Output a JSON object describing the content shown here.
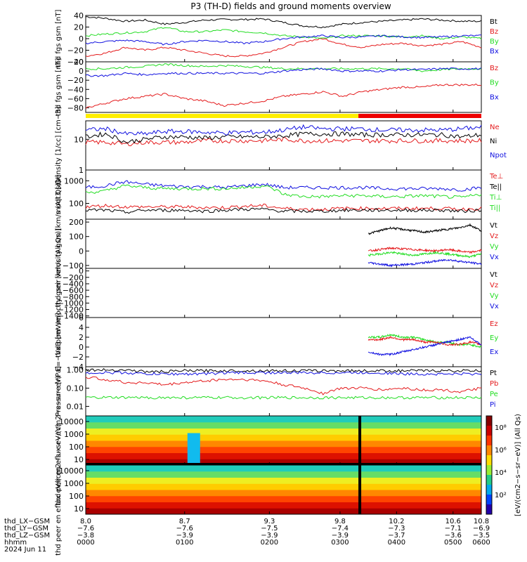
{
  "title": "P3 (TH-D) fields and ground moments overview",
  "colors": {
    "black": "#000000",
    "red": "#e41a1c",
    "green": "#22dd22",
    "blue": "#1010e0",
    "orange": "#ff8c00",
    "yellow_bar": "#ffee00",
    "red_bar": "#ee0000"
  },
  "chart_data": [
    {
      "type": "line",
      "ylabel": "thd fgs gsm [nT]",
      "ylim": [
        -40,
        40
      ],
      "yticks": [
        "40",
        "20",
        "0",
        "−20",
        "−40"
      ],
      "legend": [
        {
          "label": "Bt",
          "color": "#000000"
        },
        {
          "label": "Bz",
          "color": "#e41a1c"
        },
        {
          "label": "By",
          "color": "#22dd22"
        },
        {
          "label": "Bx",
          "color": "#1010e0"
        }
      ],
      "series": [
        {
          "name": "Bt",
          "color": "#000000",
          "y": [
            38,
            35,
            30,
            32,
            25,
            28,
            32,
            33,
            33,
            34,
            28,
            22,
            20,
            25,
            28,
            30,
            32,
            34,
            32,
            30,
            30
          ]
        },
        {
          "name": "Bz",
          "color": "#e41a1c",
          "y": [
            -30,
            -25,
            -15,
            -20,
            -15,
            -20,
            -25,
            -30,
            -30,
            -25,
            -15,
            -5,
            0,
            -10,
            -15,
            -10,
            -8,
            -12,
            -10,
            -5,
            -15
          ]
        },
        {
          "name": "By",
          "color": "#22dd22",
          "y": [
            5,
            8,
            10,
            12,
            20,
            12,
            12,
            15,
            12,
            10,
            5,
            3,
            0,
            5,
            5,
            5,
            3,
            5,
            0,
            3,
            0
          ]
        },
        {
          "name": "Bx",
          "color": "#1010e0",
          "y": [
            -8,
            -5,
            -3,
            -5,
            -10,
            -5,
            -3,
            -5,
            -8,
            -5,
            0,
            3,
            5,
            2,
            3,
            5,
            3,
            2,
            3,
            5,
            5
          ]
        }
      ]
    },
    {
      "type": "line",
      "ylabel": "thd fgs gsm [nT]",
      "ylim": [
        -90,
        20
      ],
      "yticks": [
        "20",
        "0",
        "−20",
        "−40",
        "−60",
        "−80"
      ],
      "legend": [
        {
          "label": "Bz",
          "color": "#e41a1c"
        },
        {
          "label": "By",
          "color": "#22dd22"
        },
        {
          "label": "Bx",
          "color": "#1010e0"
        }
      ],
      "series": [
        {
          "name": "Bz",
          "color": "#e41a1c",
          "y": [
            -80,
            -70,
            -60,
            -55,
            -50,
            -60,
            -65,
            -75,
            -70,
            -65,
            -55,
            -50,
            -45,
            -55,
            -45,
            -40,
            -35,
            -35,
            -30,
            -30,
            -30
          ]
        },
        {
          "name": "By",
          "color": "#22dd22",
          "y": [
            5,
            5,
            8,
            10,
            15,
            12,
            10,
            12,
            10,
            8,
            5,
            5,
            5,
            5,
            5,
            5,
            5,
            0,
            3,
            5,
            5
          ]
        },
        {
          "name": "Bx",
          "color": "#1010e0",
          "y": [
            -10,
            -10,
            -5,
            -8,
            -5,
            -5,
            -5,
            -5,
            -5,
            -5,
            0,
            3,
            5,
            0,
            0,
            0,
            3,
            3,
            5,
            5,
            5
          ]
        }
      ]
    },
    {
      "type": "line",
      "ylabel": "Density [1/cc] [cm−3]",
      "yscale": "log",
      "ylim": [
        1,
        40
      ],
      "yticks": [
        "10",
        "1"
      ],
      "legend": [
        {
          "label": "Ne",
          "color": "#e41a1c"
        },
        {
          "label": "Ni",
          "color": "#000000"
        },
        {
          "label": "Npot",
          "color": "#1010e0"
        }
      ],
      "series": [
        {
          "name": "Ne",
          "color": "#e41a1c",
          "y": [
            8,
            8,
            7,
            8,
            8,
            8,
            9,
            9,
            9,
            9,
            10,
            9,
            9,
            9,
            9,
            9,
            9,
            9,
            9,
            9,
            9
          ]
        },
        {
          "name": "Ni",
          "color": "#000000",
          "y": [
            12,
            15,
            8,
            10,
            12,
            12,
            11,
            12,
            12,
            12,
            13,
            15,
            15,
            15,
            14,
            14,
            14,
            14,
            14,
            12,
            14
          ]
        },
        {
          "name": "Npot",
          "color": "#1010e0",
          "y": [
            20,
            22,
            15,
            15,
            18,
            18,
            17,
            16,
            17,
            17,
            20,
            25,
            22,
            22,
            22,
            20,
            20,
            20,
            20,
            22,
            25
          ]
        }
      ]
    },
    {
      "type": "line",
      "ylabel": "moqt3 [eV]",
      "yscale": "log",
      "ylim": [
        20,
        3000
      ],
      "yticks": [
        "1000",
        "100"
      ],
      "legend": [
        {
          "label": "Te⊥",
          "color": "#e41a1c"
        },
        {
          "label": "Te||",
          "color": "#000000"
        },
        {
          "label": "Ti⊥",
          "color": "#22dd22"
        },
        {
          "label": "Ti||",
          "color": "#22dd22"
        }
      ],
      "series": [
        {
          "name": "Ti⊥",
          "color": "#1010e0",
          "y": [
            500,
            600,
            900,
            700,
            600,
            550,
            550,
            500,
            600,
            700,
            500,
            500,
            500,
            500,
            500,
            450,
            450,
            450,
            450,
            400,
            500
          ]
        },
        {
          "name": "Ti||",
          "color": "#22dd22",
          "y": [
            300,
            350,
            600,
            500,
            450,
            450,
            450,
            450,
            500,
            600,
            250,
            200,
            200,
            220,
            220,
            200,
            200,
            220,
            200,
            180,
            250
          ]
        },
        {
          "name": "Te⊥",
          "color": "#e41a1c",
          "y": [
            70,
            80,
            70,
            70,
            70,
            70,
            65,
            65,
            75,
            80,
            60,
            55,
            55,
            60,
            60,
            60,
            60,
            60,
            60,
            55,
            60
          ]
        },
        {
          "name": "Te||",
          "color": "#000000",
          "y": [
            50,
            50,
            40,
            50,
            50,
            50,
            45,
            50,
            55,
            55,
            45,
            45,
            45,
            50,
            50,
            50,
            50,
            50,
            50,
            45,
            50
          ]
        }
      ]
    },
    {
      "type": "line",
      "ylabel": "thd peir velocity gsm [km/s (All Qs)]",
      "ylim": [
        -120,
        220
      ],
      "yticks": [
        "200",
        "100",
        "0",
        "−100"
      ],
      "legend": [
        {
          "label": "Vt",
          "color": "#000000"
        },
        {
          "label": "Vz",
          "color": "#e41a1c"
        },
        {
          "label": "Vy",
          "color": "#22dd22"
        },
        {
          "label": "Vx",
          "color": "#1010e0"
        }
      ],
      "x_start": 10.0,
      "series": [
        {
          "name": "Vt",
          "color": "#000000",
          "y": [
            120,
            140,
            160,
            150,
            140,
            130,
            140,
            150,
            160,
            180,
            140
          ]
        },
        {
          "name": "Vz",
          "color": "#e41a1c",
          "y": [
            0,
            10,
            20,
            15,
            10,
            5,
            0,
            10,
            0,
            -10,
            5
          ]
        },
        {
          "name": "Vy",
          "color": "#22dd22",
          "y": [
            -30,
            -20,
            -10,
            -20,
            -30,
            -20,
            -10,
            -20,
            -30,
            -40,
            -20
          ]
        },
        {
          "name": "Vx",
          "color": "#1010e0",
          "y": [
            -80,
            -90,
            -100,
            -95,
            -90,
            -80,
            -70,
            -60,
            -70,
            -80,
            -90
          ]
        }
      ]
    },
    {
      "type": "line",
      "ylabel": "thd peer velocity gsm [km/s (All Qs)]",
      "ylim": [
        -1450,
        80
      ],
      "yticks": [
        "0",
        "−200",
        "−400",
        "−600",
        "−800",
        "−1000",
        "−1200",
        "−1400"
      ],
      "legend": [
        {
          "label": "Vt",
          "color": "#000000"
        },
        {
          "label": "Vz",
          "color": "#e41a1c"
        },
        {
          "label": "Vy",
          "color": "#22dd22"
        },
        {
          "label": "Vx",
          "color": "#1010e0"
        }
      ],
      "series": []
    },
    {
      "type": "line",
      "ylabel": "E=−VxB [mV/m]",
      "ylim": [
        -4,
        6
      ],
      "yticks": [
        "6",
        "4",
        "2",
        "0",
        "−2",
        "−4"
      ],
      "legend": [
        {
          "label": "Ez",
          "color": "#e41a1c"
        },
        {
          "label": "Ey",
          "color": "#22dd22"
        },
        {
          "label": "Ex",
          "color": "#1010e0"
        }
      ],
      "x_start": 10.0,
      "series": [
        {
          "name": "Ey",
          "color": "#22dd22",
          "y": [
            2,
            2,
            2.5,
            2,
            2,
            1.5,
            1,
            1,
            0.5,
            0.5,
            0
          ]
        },
        {
          "name": "Ez",
          "color": "#e41a1c",
          "y": [
            1.5,
            1.5,
            2,
            1.5,
            1.5,
            1,
            1,
            0.5,
            0.5,
            1,
            0.5
          ]
        },
        {
          "name": "Ex",
          "color": "#1010e0",
          "y": [
            -1,
            -1.5,
            -1.5,
            -1,
            -0.5,
            0,
            0.5,
            1,
            1.5,
            2,
            0.5
          ]
        }
      ]
    },
    {
      "type": "line",
      "ylabel": "Pressure [nPa]",
      "yscale": "log",
      "ylim": [
        0.003,
        1.5
      ],
      "yticks": [
        "1.00",
        "0.10",
        "0.01"
      ],
      "legend": [
        {
          "label": "Pt",
          "color": "#000000"
        },
        {
          "label": "Pb",
          "color": "#e41a1c"
        },
        {
          "label": "Pe",
          "color": "#22dd22"
        },
        {
          "label": "Pi",
          "color": "#1010e0"
        }
      ],
      "series": [
        {
          "name": "Pt",
          "color": "#000000",
          "y": [
            1.0,
            1.0,
            1.0,
            0.8,
            0.8,
            0.9,
            0.9,
            0.9,
            0.9,
            0.9,
            0.9,
            0.9,
            0.9,
            0.9,
            0.9,
            0.9,
            0.9,
            0.9,
            0.9,
            0.9,
            0.9
          ]
        },
        {
          "name": "Pi",
          "color": "#1010e0",
          "y": [
            0.7,
            0.7,
            0.7,
            0.6,
            0.6,
            0.6,
            0.6,
            0.7,
            0.7,
            0.7,
            0.7,
            0.7,
            0.7,
            0.7,
            0.7,
            0.7,
            0.6,
            0.6,
            0.6,
            0.6,
            0.6
          ]
        },
        {
          "name": "Pb",
          "color": "#e41a1c",
          "y": [
            0.4,
            0.3,
            0.2,
            0.2,
            0.15,
            0.2,
            0.25,
            0.3,
            0.3,
            0.25,
            0.15,
            0.1,
            0.05,
            0.1,
            0.1,
            0.08,
            0.1,
            0.08,
            0.08,
            0.06,
            0.1
          ]
        },
        {
          "name": "Pe",
          "color": "#22dd22",
          "y": [
            0.03,
            0.03,
            0.03,
            0.03,
            0.03,
            0.03,
            0.03,
            0.03,
            0.03,
            0.03,
            0.03,
            0.03,
            0.03,
            0.03,
            0.03,
            0.03,
            0.03,
            0.03,
            0.03,
            0.03,
            0.03
          ]
        }
      ]
    },
    {
      "type": "heatmap",
      "ylabel": "thd peir en eflux eV/(cm2−s−sr−eV)",
      "yscale": "log",
      "yticks": [
        "10000",
        "1000",
        "100",
        "10"
      ]
    },
    {
      "type": "heatmap",
      "ylabel": "thd peer en eflux eV/(cm2−s−sr−eV)",
      "yscale": "log",
      "yticks": [
        "10000",
        "1000",
        "100",
        "10"
      ]
    }
  ],
  "colorbar": {
    "label": "[eV/(cm2−s−sr−eV)] (All Qs)",
    "ticks": [
      "10⁸",
      "10⁶",
      "10⁴",
      "10²"
    ]
  },
  "x_axis": {
    "range": [
      8.0,
      10.8
    ],
    "rows": [
      {
        "label": "thd_LX−GSM",
        "values": [
          "8.0",
          "8.7",
          "9.3",
          "9.8",
          "10.2",
          "10.6",
          "10.8"
        ]
      },
      {
        "label": "thd_LY−GSM",
        "values": [
          "−7.6",
          "−7.6",
          "−7.5",
          "−7.4",
          "−7.3",
          "−7.1",
          "−6.9"
        ]
      },
      {
        "label": "thd_LZ−GSM",
        "values": [
          "−3.8",
          "−3.9",
          "−3.9",
          "−3.9",
          "−3.7",
          "−3.6",
          "−3.5"
        ]
      },
      {
        "label": "hhmm",
        "values": [
          "0000",
          "0100",
          "0200",
          "0300",
          "0400",
          "0500",
          "0600"
        ]
      }
    ],
    "date_label": "2024 Jun 11"
  }
}
